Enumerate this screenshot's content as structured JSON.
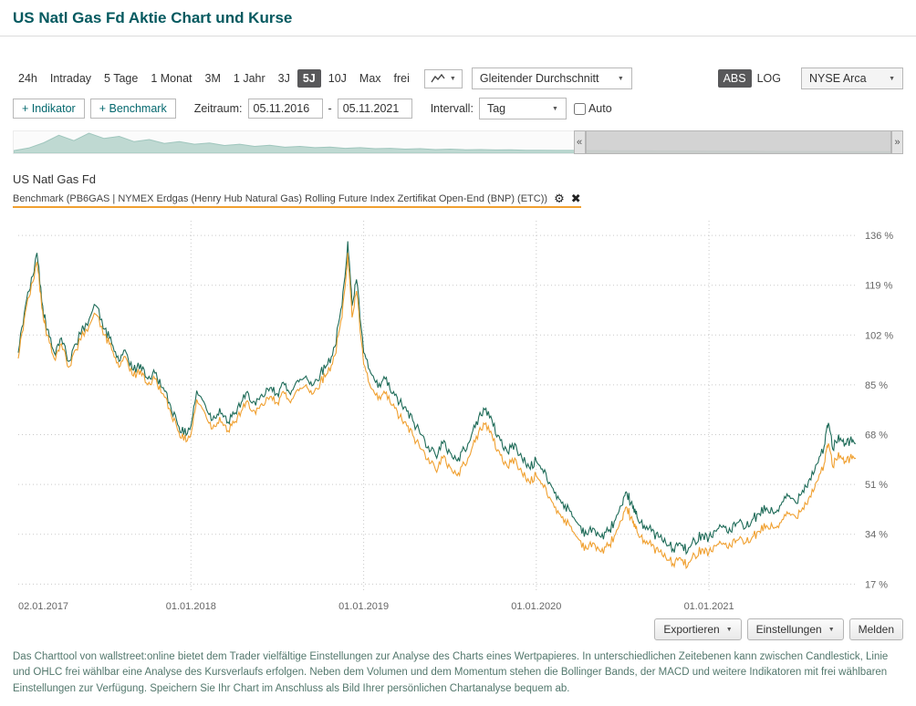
{
  "page": {
    "title": "US Natl Gas Fd Aktie Chart und Kurse"
  },
  "icons": {
    "chevron_down": "▼",
    "scroll_left": "«",
    "scroll_right": "»",
    "settings": "⚙",
    "close": "✖",
    "date_separator": "-"
  },
  "toolbar": {
    "ranges": [
      "24h",
      "Intraday",
      "5 Tage",
      "1 Monat",
      "3M",
      "1 Jahr",
      "3J",
      "5J",
      "10J",
      "Max",
      "frei"
    ],
    "selected_range": "5J",
    "chart_type_icon": "line-chart-icon",
    "indicator_dropdown": "Gleitender Durchschnitt",
    "scale_abs": "ABS",
    "scale_log": "LOG",
    "selected_scale": "ABS",
    "exchange_dropdown": "NYSE Arca"
  },
  "controls": {
    "add_indicator": "+ Indikator",
    "add_benchmark": "+ Benchmark",
    "zeitraum_label": "Zeitraum:",
    "date_from": "05.11.2016",
    "date_to": "05.11.2021",
    "intervall_label": "Intervall:",
    "interval_value": "Tag",
    "auto_label": "Auto",
    "auto_checked": false
  },
  "legend": {
    "series_name": "US Natl Gas Fd",
    "benchmark_label": "Benchmark (PB6GAS | NYMEX Erdgas (Henry Hub Natural Gas) Rolling Future Index Zertifikat Open-End (BNP) (ETC))"
  },
  "colors": {
    "title_teal": "#04595f",
    "series_green": "#1e6b58",
    "benchmark_orange": "#f0a030",
    "selected_button_bg": "#58585a",
    "grid": "#c9c9c9",
    "navigator_fill": "#bfd9d2",
    "axis_text": "#666666"
  },
  "chart_data": {
    "type": "line",
    "title": "US Natl Gas Fd vs. Benchmark, 5 Jahre, prozentuale Performance",
    "x_unit": "months since 2017-01",
    "y_unit": "%",
    "grid": "dotted",
    "legend_position": "top-left",
    "ylim": [
      14,
      141
    ],
    "y_ticks": [
      136,
      119,
      102,
      85,
      68,
      51,
      34,
      17
    ],
    "x_ticks": [
      {
        "label": "02.01.2017",
        "t": 0
      },
      {
        "label": "01.01.2018",
        "t": 12
      },
      {
        "label": "01.01.2019",
        "t": 24
      },
      {
        "label": "01.01.2020",
        "t": 36
      },
      {
        "label": "01.01.2021",
        "t": 48
      }
    ],
    "x": [
      0,
      0.5,
      1,
      1.3,
      1.7,
      2,
      2.5,
      3,
      3.5,
      4,
      4.7,
      5.4,
      6,
      6.5,
      7,
      7.5,
      8,
      8.5,
      9,
      9.5,
      10,
      10.5,
      11,
      11.5,
      12,
      12.4,
      13,
      13.5,
      14,
      14.5,
      15,
      15.5,
      16,
      16.5,
      17,
      17.5,
      18,
      18.5,
      19,
      19.5,
      20,
      20.5,
      21,
      21.5,
      22,
      22.5,
      22.9,
      23.2,
      23.5,
      24,
      24.5,
      25,
      25.5,
      26,
      26.5,
      27,
      27.5,
      28,
      28.5,
      29,
      29.5,
      30,
      30.5,
      31,
      31.5,
      32,
      32.5,
      33,
      33.5,
      34,
      34.5,
      35,
      35.5,
      36,
      36.5,
      37,
      37.5,
      38,
      38.5,
      39,
      39.5,
      40,
      40.5,
      41,
      41.5,
      42,
      42.3,
      42.7,
      43,
      43.5,
      44,
      44.5,
      45,
      45.5,
      46,
      46.5,
      47,
      47.5,
      48,
      48.5,
      49,
      49.5,
      50,
      50.5,
      51,
      51.5,
      52,
      52.5,
      53,
      53.5,
      54,
      54.5,
      55,
      55.5,
      56,
      56.3,
      56.6,
      57,
      57.4,
      57.8,
      58.2
    ],
    "series": [
      {
        "name": "US Natl Gas Fd",
        "color": "#1e6b58",
        "values": [
          96,
          112,
          122,
          130,
          112,
          104,
          96,
          101,
          93,
          99,
          106,
          112,
          104,
          99,
          93,
          96,
          90,
          92,
          87,
          89,
          84,
          79,
          73,
          68,
          71,
          83,
          78,
          73,
          77,
          72,
          75,
          79,
          82,
          78,
          81,
          84,
          82,
          85,
          83,
          86,
          88,
          85,
          89,
          92,
          98,
          112,
          134,
          112,
          121,
          96,
          89,
          84,
          87,
          82,
          79,
          76,
          72,
          68,
          64,
          61,
          65,
          62,
          59,
          63,
          68,
          74,
          77,
          71,
          66,
          62,
          65,
          60,
          57,
          59,
          55,
          51,
          47,
          44,
          40,
          37,
          34,
          36,
          33,
          35,
          39,
          44,
          48,
          43,
          40,
          37,
          35,
          33,
          31,
          29,
          31,
          28,
          32,
          34,
          33,
          35,
          37,
          35,
          38,
          36,
          39,
          41,
          43,
          41,
          44,
          47,
          45,
          49,
          53,
          58,
          64,
          72,
          63,
          68,
          64,
          66,
          65
        ]
      },
      {
        "name": "Benchmark PB6GAS NYMEX Erdgas (Henry Hub Natural Gas) Rolling Future Index Zertifikat",
        "color": "#f0a030",
        "values": [
          94,
          110,
          120,
          127,
          110,
          102,
          94,
          99,
          91,
          97,
          104,
          109,
          102,
          97,
          91,
          94,
          88,
          90,
          85,
          87,
          82,
          77,
          71,
          66,
          68,
          80,
          75,
          70,
          74,
          69,
          72,
          76,
          79,
          75,
          78,
          81,
          79,
          82,
          80,
          83,
          85,
          82,
          86,
          89,
          95,
          108,
          130,
          108,
          117,
          92,
          84,
          80,
          82,
          78,
          74,
          71,
          67,
          63,
          60,
          56,
          60,
          57,
          54,
          58,
          63,
          69,
          72,
          66,
          61,
          57,
          60,
          55,
          52,
          54,
          50,
          46,
          42,
          39,
          35,
          32,
          29,
          31,
          28,
          30,
          34,
          39,
          43,
          38,
          35,
          32,
          30,
          28,
          26,
          24,
          26,
          23,
          27,
          29,
          28,
          30,
          31,
          30,
          32,
          31,
          33,
          35,
          37,
          36,
          38,
          41,
          40,
          43,
          47,
          52,
          58,
          65,
          57,
          62,
          58,
          60,
          60
        ]
      }
    ],
    "navigator_values": [
      8,
      20,
      45,
      80,
      55,
      90,
      65,
      75,
      50,
      60,
      42,
      50,
      38,
      44,
      32,
      38,
      28,
      33,
      24,
      28,
      22,
      25,
      19,
      22,
      17,
      19,
      15,
      17,
      13,
      15,
      12,
      13,
      11,
      12,
      10,
      10,
      9,
      9,
      8,
      8,
      7,
      7,
      7,
      6,
      6,
      6,
      5,
      5,
      5,
      5,
      4,
      4,
      4,
      4,
      4,
      3,
      3,
      3,
      3,
      3
    ]
  },
  "footer": {
    "export_button": "Exportieren",
    "settings_button": "Einstellungen",
    "report_button": "Melden",
    "description": "Das Charttool von wallstreet:online bietet dem Trader vielfältige Einstellungen zur Analyse des Charts eines Wertpapieres. In unterschiedlichen Zeitebenen kann zwischen Candlestick, Linie und OHLC frei wählbar eine Analyse des Kursverlaufs erfolgen. Neben dem Volumen und dem Momentum stehen die Bollinger Bands, der MACD und weitere Indikatoren mit frei wählbaren Einstellungen zur Verfügung. Speichern Sie Ihr Chart im Anschluss als Bild Ihrer persönlichen Chartanalyse bequem ab."
  }
}
